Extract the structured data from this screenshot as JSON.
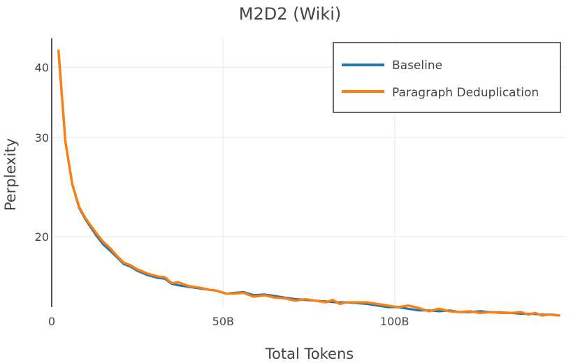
{
  "chart_data": {
    "type": "line",
    "title": "M2D2 (Wiki)",
    "xlabel": "Total Tokens",
    "ylabel": "Perplexity",
    "y_scale": "log",
    "x_tick_labels": [
      "0",
      "50B",
      "100B"
    ],
    "x_ticks": [
      0,
      50,
      100
    ],
    "x_units": "billions of tokens",
    "y_tick_labels": [
      "20",
      "30",
      "40"
    ],
    "y_ticks": [
      20,
      30,
      40
    ],
    "xlim": [
      0,
      150
    ],
    "ylim": [
      15.0,
      45.0
    ],
    "grid": true,
    "legend_position": "top-right",
    "series": [
      {
        "name": "Baseline",
        "color": "#1f77b4",
        "x": [
          2,
          4,
          6,
          8,
          10,
          13,
          15,
          17,
          19,
          21,
          23,
          25,
          28,
          31,
          33,
          35,
          37,
          40,
          43,
          46,
          48,
          51,
          53,
          56,
          59,
          62,
          65,
          68,
          71,
          74,
          77,
          80,
          83,
          86,
          89,
          92,
          95,
          98,
          101,
          104,
          107,
          110,
          113,
          116,
          119,
          122,
          125,
          128,
          131,
          134,
          137,
          140,
          143,
          146,
          148
        ],
        "values": [
          42.5,
          29.5,
          24.8,
          22.5,
          21.4,
          20.1,
          19.4,
          18.9,
          18.4,
          17.9,
          17.7,
          17.4,
          17.1,
          16.9,
          16.85,
          16.5,
          16.4,
          16.3,
          16.2,
          16.1,
          16.05,
          15.85,
          15.9,
          15.95,
          15.75,
          15.8,
          15.7,
          15.6,
          15.5,
          15.45,
          15.4,
          15.35,
          15.3,
          15.3,
          15.25,
          15.2,
          15.1,
          15.0,
          15.0,
          14.9,
          14.8,
          14.8,
          14.75,
          14.8,
          14.7,
          14.7,
          14.75,
          14.7,
          14.68,
          14.65,
          14.6,
          14.6,
          14.55,
          14.55,
          14.5
        ]
      },
      {
        "name": "Paragraph Deduplication",
        "color": "#ff7f0e",
        "x": [
          2,
          4,
          6,
          8,
          10,
          13,
          15,
          17,
          19,
          21,
          23,
          25,
          28,
          31,
          33,
          35,
          37,
          40,
          43,
          46,
          48,
          51,
          53,
          56,
          59,
          62,
          65,
          68,
          71,
          74,
          77,
          80,
          82,
          84,
          86,
          89,
          92,
          95,
          98,
          101,
          104,
          107,
          110,
          113,
          116,
          119,
          122,
          125,
          128,
          131,
          134,
          137,
          139,
          141,
          143,
          145,
          148
        ],
        "values": [
          42.8,
          29.5,
          24.8,
          22.6,
          21.5,
          20.3,
          19.6,
          19.1,
          18.5,
          18.0,
          17.8,
          17.5,
          17.2,
          17.0,
          16.95,
          16.55,
          16.6,
          16.35,
          16.25,
          16.1,
          16.05,
          15.85,
          15.85,
          15.9,
          15.65,
          15.75,
          15.6,
          15.55,
          15.4,
          15.5,
          15.4,
          15.3,
          15.45,
          15.2,
          15.3,
          15.3,
          15.3,
          15.2,
          15.1,
          15.0,
          15.1,
          14.95,
          14.75,
          14.9,
          14.75,
          14.7,
          14.75,
          14.65,
          14.7,
          14.65,
          14.65,
          14.7,
          14.55,
          14.65,
          14.5,
          14.55,
          14.5
        ]
      }
    ]
  }
}
